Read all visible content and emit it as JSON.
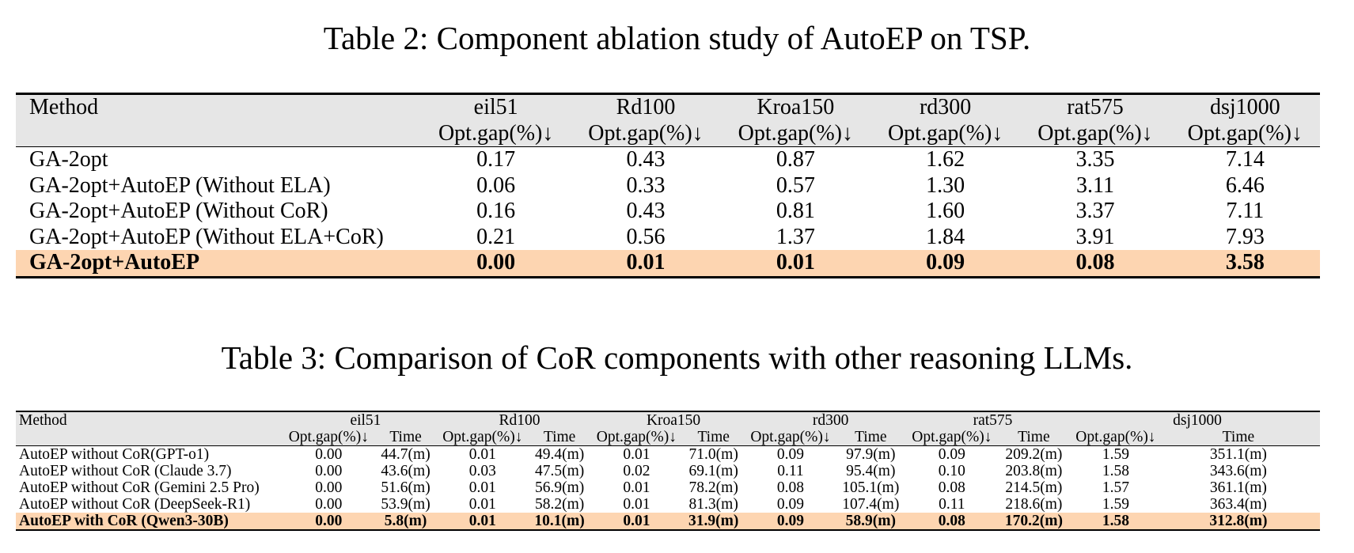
{
  "table2": {
    "caption": "Table 2: Component ablation study of AutoEP on TSP.",
    "method_header": "Method",
    "metric_label": "Opt.gap(%)↓",
    "datasets": [
      "eil51",
      "Rd100",
      "Kroa150",
      "rd300",
      "rat575",
      "dsj1000"
    ],
    "rows": [
      {
        "method": "GA-2opt",
        "values": [
          "0.17",
          "0.43",
          "0.87",
          "1.62",
          "3.35",
          "7.14"
        ]
      },
      {
        "method": "GA-2opt+AutoEP (Without ELA)",
        "values": [
          "0.06",
          "0.33",
          "0.57",
          "1.30",
          "3.11",
          "6.46"
        ]
      },
      {
        "method": "GA-2opt+AutoEP (Without CoR)",
        "values": [
          "0.16",
          "0.43",
          "0.81",
          "1.60",
          "3.37",
          "7.11"
        ]
      },
      {
        "method": "GA-2opt+AutoEP (Without ELA+CoR)",
        "values": [
          "0.21",
          "0.56",
          "1.37",
          "1.84",
          "3.91",
          "7.93"
        ]
      },
      {
        "method": "GA-2opt+AutoEP",
        "values": [
          "0.00",
          "0.01",
          "0.01",
          "0.09",
          "0.08",
          "3.58"
        ]
      }
    ]
  },
  "table3": {
    "caption": "Table 3: Comparison of CoR components with other reasoning LLMs.",
    "method_header": "Method",
    "metric_label": "Opt.gap(%)↓",
    "time_label": "Time",
    "datasets": [
      "eil51",
      "Rd100",
      "Kroa150",
      "rd300",
      "rat575",
      "dsj1000"
    ],
    "rows": [
      {
        "method": "AutoEP without CoR(GPT-o1)",
        "values": [
          "0.00",
          "44.7(m)",
          "0.01",
          "49.4(m)",
          "0.01",
          "71.0(m)",
          "0.09",
          "97.9(m)",
          "0.09",
          "209.2(m)",
          "1.59",
          "351.1(m)"
        ]
      },
      {
        "method": "AutoEP without CoR (Claude 3.7)",
        "values": [
          "0.00",
          "43.6(m)",
          "0.03",
          "47.5(m)",
          "0.02",
          "69.1(m)",
          "0.11",
          "95.4(m)",
          "0.10",
          "203.8(m)",
          "1.58",
          "343.6(m)"
        ]
      },
      {
        "method": "AutoEP without CoR (Gemini 2.5 Pro)",
        "values": [
          "0.00",
          "51.6(m)",
          "0.01",
          "56.9(m)",
          "0.01",
          "78.2(m)",
          "0.08",
          "105.1(m)",
          "0.08",
          "214.5(m)",
          "1.57",
          "361.1(m)"
        ]
      },
      {
        "method": "AutoEP without CoR (DeepSeek-R1)",
        "values": [
          "0.00",
          "53.9(m)",
          "0.01",
          "58.2(m)",
          "0.01",
          "81.3(m)",
          "0.09",
          "107.4(m)",
          "0.11",
          "218.6(m)",
          "1.59",
          "363.4(m)"
        ]
      },
      {
        "method": "AutoEP with CoR (Qwen3-30B)",
        "values": [
          "0.00",
          "5.8(m)",
          "0.01",
          "10.1(m)",
          "0.01",
          "31.9(m)",
          "0.09",
          "58.9(m)",
          "0.08",
          "170.2(m)",
          "1.58",
          "312.8(m)"
        ]
      }
    ]
  },
  "colors": {
    "header_bg": "#e6e6e6",
    "highlight_row_bg": "#fdd5b1"
  }
}
